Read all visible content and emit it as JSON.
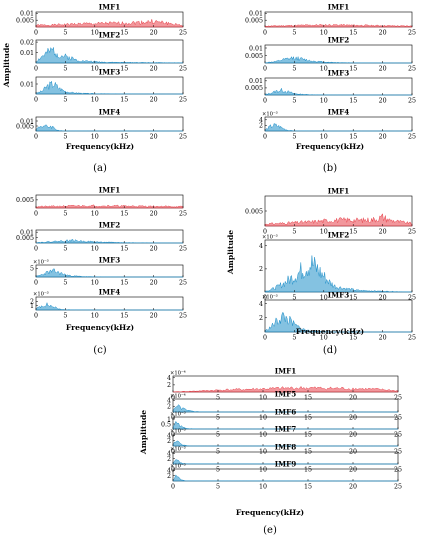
{
  "figure": {
    "amplitude_label": "Amplitude",
    "x_label": "Frequency(kHz)",
    "x_ticks": [
      "0",
      "5",
      "10",
      "15",
      "20",
      "25"
    ],
    "colors": {
      "imf1": "#e8414a",
      "other": "#1f8fc9",
      "axis": "#000000"
    }
  },
  "chart_data": [
    {
      "panel": "(a)",
      "type": "line",
      "xlabel": "Frequency(kHz)",
      "ylabel": "Amplitude",
      "xlim": [
        0,
        25
      ],
      "series": [
        {
          "name": "IMF1",
          "y_ticks": [
            "0.01",
            "0.005"
          ],
          "ylim": [
            0,
            0.011
          ],
          "color": "red",
          "x": [
            0,
            2,
            4,
            6,
            8,
            10,
            12,
            14,
            16,
            18,
            19,
            20,
            21,
            22,
            23,
            25
          ],
          "y": [
            0.002,
            0.002,
            0.0025,
            0.003,
            0.0035,
            0.0035,
            0.004,
            0.004,
            0.0045,
            0.005,
            0.0055,
            0.006,
            0.005,
            0.0045,
            0.0035,
            0.0015
          ]
        },
        {
          "name": "IMF2",
          "y_ticks": [
            "0.02",
            "0.01"
          ],
          "ylim": [
            0,
            0.022
          ],
          "color": "blue",
          "x": [
            0,
            1,
            2,
            3,
            4,
            5,
            6,
            7,
            8,
            10,
            12,
            15,
            20,
            25
          ],
          "y": [
            0.002,
            0.009,
            0.014,
            0.018,
            0.011,
            0.009,
            0.007,
            0.004,
            0.003,
            0.002,
            0.001,
            0.0008,
            0.0005,
            0.0003
          ]
        },
        {
          "name": "IMF3",
          "y_ticks": [
            "0.01"
          ],
          "ylim": [
            0,
            0.017
          ],
          "color": "blue",
          "x": [
            0,
            1,
            2,
            3,
            4,
            5,
            6,
            8,
            10,
            15,
            20,
            25
          ],
          "y": [
            0.001,
            0.004,
            0.012,
            0.015,
            0.008,
            0.004,
            0.002,
            0.001,
            0.0005,
            0.0002,
            0.0001,
            0
          ]
        },
        {
          "name": "IMF4",
          "y_ticks": [
            "0.01",
            "0.005"
          ],
          "ylim": [
            0,
            0.014
          ],
          "color": "blue",
          "x": [
            0,
            0.5,
            1,
            1.5,
            2,
            2.5,
            3,
            3.5,
            4,
            5,
            10,
            25
          ],
          "y": [
            0.002,
            0.006,
            0.008,
            0.007,
            0.006,
            0.007,
            0.005,
            0.002,
            0.0005,
            0.0002,
            0.0001,
            0
          ]
        }
      ]
    },
    {
      "panel": "(b)",
      "type": "line",
      "xlabel": "Frequency(kHz)",
      "xlim": [
        0,
        25
      ],
      "series": [
        {
          "name": "IMF1",
          "y_ticks": [
            "0.01",
            "0.005"
          ],
          "ylim": [
            0,
            0.011
          ],
          "color": "red",
          "x": [
            0,
            2,
            4,
            6,
            8,
            10,
            12,
            14,
            16,
            18,
            20,
            22,
            25
          ],
          "y": [
            0.001,
            0.0012,
            0.0015,
            0.0018,
            0.002,
            0.0022,
            0.0022,
            0.002,
            0.0018,
            0.0016,
            0.0015,
            0.0012,
            0.001
          ]
        },
        {
          "name": "IMF2",
          "y_ticks": [
            "0.01",
            "0.005"
          ],
          "ylim": [
            0,
            0.012
          ],
          "color": "blue",
          "x": [
            0,
            2,
            3,
            4,
            5,
            6,
            7,
            8,
            10,
            12,
            15,
            20,
            25
          ],
          "y": [
            0.0003,
            0.0015,
            0.003,
            0.004,
            0.005,
            0.004,
            0.003,
            0.002,
            0.001,
            0.0005,
            0.0002,
            0.0001,
            0
          ]
        },
        {
          "name": "IMF3",
          "y_ticks": [
            "0.01",
            "0.005"
          ],
          "ylim": [
            0,
            0.012
          ],
          "color": "blue",
          "x": [
            0,
            1,
            2,
            3,
            4,
            5,
            6,
            8,
            10,
            15,
            25
          ],
          "y": [
            0.0005,
            0.002,
            0.004,
            0.005,
            0.003,
            0.0015,
            0.0008,
            0.0003,
            0.0001,
            0,
            0
          ]
        },
        {
          "name": "IMF4",
          "y_ticks": [
            "4",
            "2"
          ],
          "y_exponent": "×10⁻³",
          "ylim": [
            0,
            5
          ],
          "color": "blue",
          "x": [
            0,
            0.5,
            1,
            1.5,
            2,
            2.5,
            3,
            3.5,
            4,
            5,
            10,
            25
          ],
          "y": [
            0.5,
            1.5,
            2.5,
            3,
            2.8,
            2.2,
            1.5,
            0.8,
            0.3,
            0.1,
            0,
            0
          ]
        }
      ]
    },
    {
      "panel": "(c)",
      "type": "line",
      "xlabel": "Frequency(kHz)",
      "xlim": [
        0,
        25
      ],
      "series": [
        {
          "name": "IMF1",
          "y_ticks": [
            "0.005"
          ],
          "ylim": [
            0,
            0.008
          ],
          "color": "red",
          "x": [
            0,
            2,
            4,
            6,
            8,
            10,
            12,
            14,
            16,
            18,
            20,
            22,
            25
          ],
          "y": [
            0.0012,
            0.0014,
            0.0016,
            0.0018,
            0.002,
            0.002,
            0.002,
            0.0018,
            0.0017,
            0.0016,
            0.0015,
            0.0014,
            0.0012
          ]
        },
        {
          "name": "IMF2",
          "y_ticks": [
            "0.01",
            "0.005"
          ],
          "ylim": [
            0,
            0.012
          ],
          "color": "blue",
          "x": [
            0,
            2,
            4,
            5,
            6,
            7,
            8,
            10,
            12,
            15,
            20,
            25
          ],
          "y": [
            0.0005,
            0.0015,
            0.0025,
            0.003,
            0.0035,
            0.003,
            0.0025,
            0.0015,
            0.001,
            0.0005,
            0.0002,
            0
          ]
        },
        {
          "name": "IMF3",
          "y_ticks": [
            "5"
          ],
          "y_exponent": "×10⁻³",
          "ylim": [
            0,
            7
          ],
          "color": "blue",
          "x": [
            0,
            1,
            2,
            3,
            4,
            5,
            6,
            8,
            10,
            15,
            25
          ],
          "y": [
            0.5,
            2,
            4,
            5,
            3.5,
            2,
            1,
            0.4,
            0.2,
            0,
            0
          ]
        },
        {
          "name": "IMF4",
          "y_ticks": [
            "2",
            "1"
          ],
          "y_exponent": "×10⁻³",
          "ylim": [
            0,
            3
          ],
          "color": "blue",
          "x": [
            0,
            0.5,
            1,
            1.5,
            2,
            2.5,
            3,
            3.5,
            4,
            5,
            10,
            25
          ],
          "y": [
            0.3,
            1,
            1.5,
            1.8,
            1.7,
            1.4,
            1.1,
            0.6,
            0.3,
            0.1,
            0,
            0
          ]
        }
      ]
    },
    {
      "panel": "(d)",
      "type": "line",
      "xlabel": "Frequency(kHz)",
      "ylabel": "Amplitude",
      "xlim": [
        0,
        25
      ],
      "series": [
        {
          "name": "IMF1",
          "y_ticks": [
            "0.005"
          ],
          "ylim": [
            0,
            0.01
          ],
          "color": "red",
          "x": [
            0,
            2,
            4,
            6,
            8,
            10,
            12,
            14,
            16,
            18,
            19,
            20,
            21,
            22,
            23,
            25
          ],
          "y": [
            0.001,
            0.0012,
            0.0015,
            0.0018,
            0.002,
            0.0025,
            0.0028,
            0.003,
            0.0028,
            0.003,
            0.0035,
            0.0045,
            0.003,
            0.0025,
            0.002,
            0.0012
          ]
        },
        {
          "name": "IMF2",
          "y_ticks": [
            "4",
            "2"
          ],
          "y_exponent": "×10⁻³",
          "ylim": [
            0,
            4.5
          ],
          "color": "blue",
          "x": [
            0,
            1,
            2,
            3,
            4,
            5,
            6,
            7,
            8,
            9,
            10,
            11,
            12,
            14,
            16,
            20,
            25
          ],
          "y": [
            0.1,
            0.3,
            0.6,
            1,
            1.5,
            2,
            2.6,
            3.2,
            3.6,
            2.8,
            2,
            1.2,
            0.7,
            0.4,
            0.2,
            0.1,
            0
          ]
        },
        {
          "name": "IMF3",
          "y_ticks": [
            "4",
            "2"
          ],
          "y_exponent": "×10⁻³",
          "ylim": [
            0,
            4.5
          ],
          "color": "blue",
          "x": [
            0,
            1,
            2,
            3,
            4,
            5,
            6,
            7,
            8,
            10,
            12,
            15,
            25
          ],
          "y": [
            0.2,
            1,
            2.2,
            3.2,
            2.5,
            1.5,
            0.8,
            0.4,
            0.2,
            0.1,
            0,
            0,
            0
          ]
        }
      ]
    },
    {
      "panel": "(e)",
      "type": "line",
      "xlabel": "Frequency(kHz)",
      "ylabel": "Amplitude",
      "xlim": [
        0,
        25
      ],
      "series": [
        {
          "name": "IMF1",
          "y_ticks": [
            "4",
            "2"
          ],
          "y_exponent": "×10⁻⁴",
          "ylim": [
            0,
            4.5
          ],
          "color": "red",
          "x": [
            0,
            2,
            4,
            6,
            8,
            10,
            12,
            14,
            16,
            18,
            20,
            22,
            24,
            25
          ],
          "y": [
            0.1,
            0.3,
            0.6,
            0.9,
            1.1,
            1.3,
            1.5,
            1.7,
            1.6,
            1.5,
            1.4,
            1.2,
            0.8,
            0.4
          ]
        },
        {
          "name": "IMF5",
          "y_ticks": [
            "4",
            "2"
          ],
          "y_exponent": "×10⁻⁴",
          "ylim": [
            0,
            4.5
          ],
          "color": "blue",
          "x": [
            0,
            0.3,
            0.6,
            1,
            1.5,
            2,
            3,
            5,
            25
          ],
          "y": [
            0.5,
            2,
            3.2,
            2,
            1,
            0.4,
            0.1,
            0,
            0
          ]
        },
        {
          "name": "IMF6",
          "y_ticks": [
            "1",
            "0.5"
          ],
          "y_exponent": "×10⁻³",
          "ylim": [
            0,
            1.2
          ],
          "color": "blue",
          "x": [
            0,
            0.2,
            0.4,
            0.7,
            1,
            1.5,
            2,
            3,
            25
          ],
          "y": [
            0.2,
            0.6,
            0.9,
            0.6,
            0.3,
            0.1,
            0.05,
            0,
            0
          ]
        },
        {
          "name": "IMF7",
          "y_ticks": [
            "4",
            "2"
          ],
          "y_exponent": "×10⁻³",
          "ylim": [
            0,
            4.5
          ],
          "color": "blue",
          "x": [
            0,
            0.2,
            0.4,
            0.6,
            1,
            1.5,
            2,
            25
          ],
          "y": [
            0.5,
            2.5,
            3.5,
            2,
            0.6,
            0.2,
            0,
            0
          ]
        },
        {
          "name": "IMF8",
          "y_ticks": [
            "4",
            "2"
          ],
          "y_exponent": "×10⁻³",
          "ylim": [
            0,
            4.5
          ],
          "color": "blue",
          "x": [
            0,
            0.2,
            0.4,
            0.6,
            1,
            1.5,
            25
          ],
          "y": [
            0.5,
            2.2,
            3,
            1.5,
            0.4,
            0.1,
            0
          ]
        },
        {
          "name": "IMF9",
          "y_ticks": [
            "4",
            "2"
          ],
          "y_exponent": "×10⁻³",
          "ylim": [
            0,
            4.5
          ],
          "color": "blue",
          "x": [
            0,
            0.2,
            0.4,
            0.6,
            1,
            1.5,
            25
          ],
          "y": [
            0.5,
            2.5,
            3.4,
            1.6,
            0.4,
            0.1,
            0
          ]
        }
      ]
    }
  ]
}
